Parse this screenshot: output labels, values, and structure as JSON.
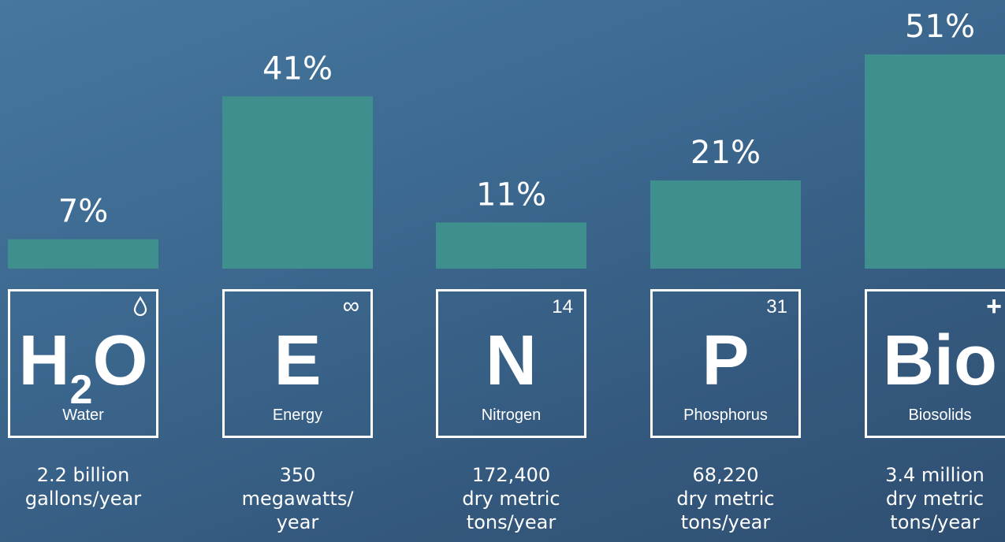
{
  "chart_data": {
    "type": "bar",
    "categories": [
      "Water",
      "Energy",
      "Nitrogen",
      "Phosphorus",
      "Biosolids"
    ],
    "values": [
      7,
      41,
      11,
      21,
      51
    ],
    "value_labels": [
      "7%",
      "41%",
      "11%",
      "21%",
      "51%"
    ],
    "ylim": [
      0,
      51
    ],
    "color": "#3f8f8e",
    "grid": false,
    "legend": "none"
  },
  "elements": [
    {
      "symbol": "H",
      "subscript": "2",
      "symbol_tail": "O",
      "corner": "",
      "corner_icon": "water-drop-icon",
      "name": "Water",
      "desc_lines": [
        "2.2 billion",
        "gallons/year"
      ]
    },
    {
      "symbol": "E",
      "subscript": "",
      "symbol_tail": "",
      "corner": "∞",
      "corner_icon": "infinity-icon",
      "name": "Energy",
      "desc_lines": [
        "350",
        "megawatts/",
        "year"
      ]
    },
    {
      "symbol": "N",
      "subscript": "",
      "symbol_tail": "",
      "corner": "14",
      "corner_icon": "",
      "name": "Nitrogen",
      "desc_lines": [
        "172,400",
        "dry metric",
        "tons/year"
      ]
    },
    {
      "symbol": "P",
      "subscript": "",
      "symbol_tail": "",
      "corner": "31",
      "corner_icon": "",
      "name": "Phosphorus",
      "desc_lines": [
        "68,220",
        "dry metric",
        "tons/year"
      ]
    },
    {
      "symbol": "Bio",
      "subscript": "",
      "symbol_tail": "",
      "corner": "+",
      "corner_icon": "plus-icon",
      "name": "Biosolids",
      "desc_lines": [
        "3.4 million",
        "dry metric",
        "tons/year"
      ]
    }
  ]
}
